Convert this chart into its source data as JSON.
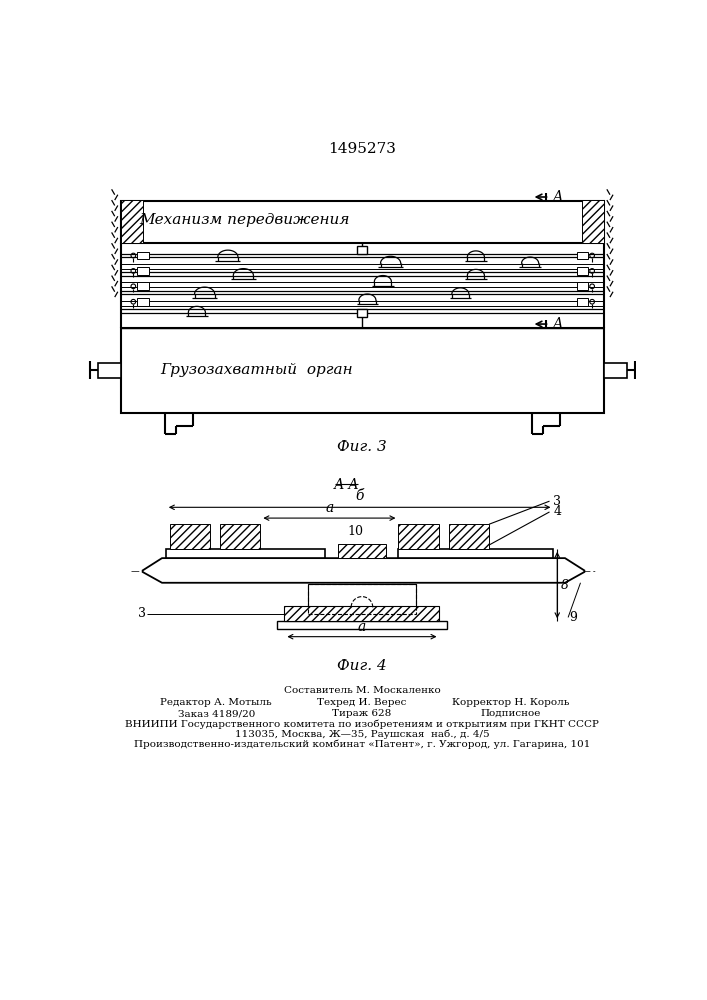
{
  "patent_number": "1495273",
  "bg_color": "#ffffff",
  "line_color": "#000000",
  "fig3_label": "Фиг. 3",
  "fig4_label": "Фиг. 4",
  "text_mech": "Механизм передвижения",
  "text_gruz": "Грузозахватный  орган",
  "label_A_upper": "А",
  "label_A_lower": "А",
  "label_AA": "А-А",
  "label_a": "а",
  "label_b": "б",
  "label_10": "10",
  "label_3_left": "3",
  "label_3_right": "3",
  "label_4": "4",
  "label_8": "8",
  "label_9": "9",
  "footer_line1": "Составитель М. Москаленко",
  "footer_line2_left": "Редактор А. Мотыль",
  "footer_line2_mid": "Техред И. Верес",
  "footer_line2_right": "Корректор Н. Король",
  "footer_line3_left": "Заказ 4189/20",
  "footer_line3_mid": "Тираж 628",
  "footer_line3_right": "Подписное",
  "footer_line4": "ВНИИПИ Государственного комитета по изобретениям и открытиям при ГКНТ СССР",
  "footer_line5": "113035, Москва, Ж—35, Раушская  наб., д. 4/5",
  "footer_line6": "Производственно-издательский комбинат «Патент», г. Ужгород, ул. Гагарина, 101"
}
